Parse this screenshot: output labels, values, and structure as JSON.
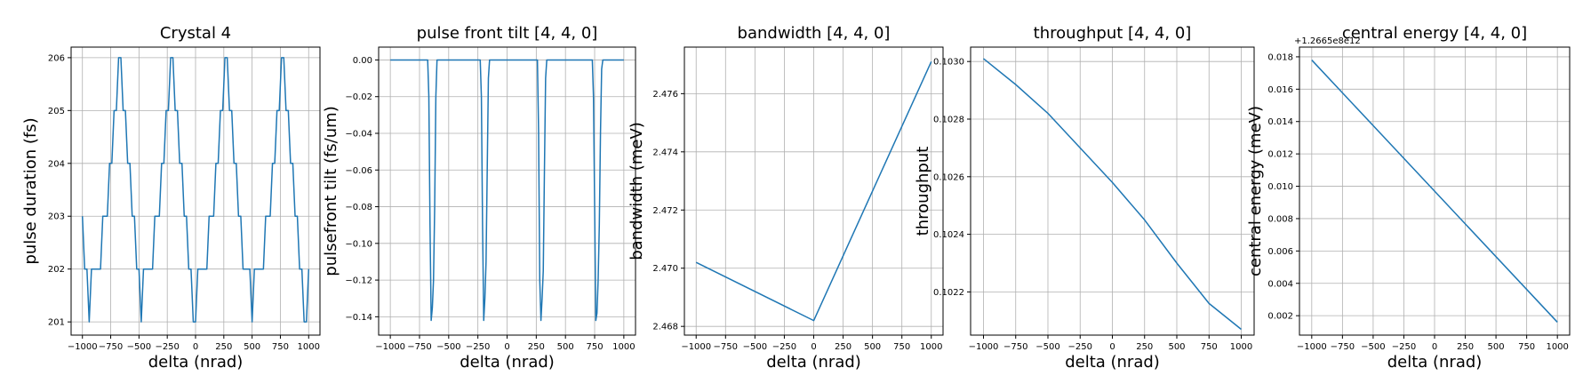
{
  "chart_data": [
    {
      "type": "line",
      "title": "Crystal 4",
      "xlabel": "delta (nrad)",
      "ylabel": "pulse duration (fs)",
      "xlim": [
        -1100,
        1100
      ],
      "ylim": [
        200.75,
        206.2
      ],
      "x_ticks": [
        -1000,
        -750,
        -500,
        -250,
        0,
        250,
        500,
        750,
        1000
      ],
      "x_tick_labels": [
        "−1000",
        "−750",
        "−500",
        "−250",
        "0",
        "250",
        "500",
        "750",
        "1000"
      ],
      "y_ticks": [
        201,
        202,
        203,
        204,
        205,
        206
      ],
      "y_tick_labels": [
        "201",
        "202",
        "203",
        "204",
        "205",
        "206"
      ],
      "offset_label": "",
      "grid": true,
      "color": "#1f77b4",
      "series": [
        {
          "x": [
            -1000,
            -980,
            -960,
            -940,
            -920,
            -900,
            -880,
            -860,
            -840,
            -820,
            -800,
            -780,
            -760,
            -740,
            -720,
            -700,
            -680,
            -660,
            -640,
            -620,
            -600,
            -580,
            -560,
            -540,
            -520,
            -500,
            -480,
            -460,
            -440,
            -420,
            -400,
            -380,
            -360,
            -340,
            -320,
            -300,
            -280,
            -260,
            -240,
            -220,
            -200,
            -180,
            -160,
            -140,
            -120,
            -100,
            -80,
            -60,
            -40,
            -20,
            0,
            20,
            40,
            60,
            80,
            100,
            120,
            140,
            160,
            180,
            200,
            220,
            240,
            260,
            280,
            300,
            320,
            340,
            360,
            380,
            400,
            420,
            440,
            460,
            480,
            500,
            520,
            540,
            560,
            580,
            600,
            620,
            640,
            660,
            680,
            700,
            720,
            740,
            760,
            780,
            800,
            820,
            840,
            860,
            880,
            900,
            920,
            940,
            960,
            980,
            1000
          ],
          "y": [
            203,
            202,
            202,
            201,
            202,
            202,
            202,
            202,
            202,
            203,
            203,
            203,
            204,
            204,
            205,
            205,
            206,
            206,
            205,
            205,
            204,
            204,
            203,
            203,
            202,
            202,
            201,
            202,
            202,
            202,
            202,
            202,
            203,
            203,
            203,
            204,
            204,
            205,
            205,
            206,
            206,
            205,
            205,
            204,
            204,
            203,
            203,
            202,
            202,
            201,
            201,
            202,
            202,
            202,
            202,
            202,
            203,
            203,
            203,
            204,
            204,
            205,
            205,
            206,
            206,
            205,
            205,
            204,
            204,
            203,
            203,
            202,
            202,
            202,
            202,
            201,
            202,
            202,
            202,
            202,
            202,
            203,
            203,
            203,
            204,
            204,
            205,
            205,
            206,
            206,
            205,
            205,
            204,
            204,
            203,
            203,
            202,
            202,
            201,
            201,
            202
          ]
        }
      ]
    },
    {
      "type": "line",
      "title": "pulse front tilt [4, 4, 0]",
      "xlabel": "delta (nrad)",
      "ylabel": "pulsefront tilt (fs/um)",
      "xlim": [
        -1100,
        1100
      ],
      "ylim": [
        -0.15,
        0.007
      ],
      "x_ticks": [
        -1000,
        -750,
        -500,
        -250,
        0,
        250,
        500,
        750,
        1000
      ],
      "x_tick_labels": [
        "−1000",
        "−750",
        "−500",
        "−250",
        "0",
        "250",
        "500",
        "750",
        "1000"
      ],
      "y_ticks": [
        0.0,
        -0.02,
        -0.04,
        -0.06,
        -0.08,
        -0.1,
        -0.12,
        -0.14
      ],
      "y_tick_labels": [
        "0.00",
        "−0.02",
        "−0.04",
        "−0.06",
        "−0.08",
        "−0.10",
        "−0.12",
        "−0.14"
      ],
      "offset_label": "",
      "grid": true,
      "color": "#1f77b4",
      "series": [
        {
          "x": [
            -1000,
            -680,
            -670,
            -660,
            -650,
            -640,
            -630,
            -620,
            -610,
            -600,
            -230,
            -220,
            -210,
            -200,
            -190,
            -180,
            -170,
            -160,
            -150,
            260,
            270,
            280,
            290,
            300,
            310,
            320,
            330,
            340,
            730,
            740,
            750,
            760,
            770,
            780,
            790,
            800,
            810,
            820,
            1000
          ],
          "y": [
            0,
            0,
            -0.02,
            -0.09,
            -0.142,
            -0.135,
            -0.12,
            -0.08,
            -0.02,
            0,
            0,
            -0.02,
            -0.09,
            -0.142,
            -0.13,
            -0.11,
            -0.06,
            -0.01,
            0,
            0,
            -0.04,
            -0.12,
            -0.142,
            -0.13,
            -0.115,
            -0.06,
            -0.01,
            0,
            0,
            -0.02,
            -0.08,
            -0.142,
            -0.138,
            -0.12,
            -0.09,
            -0.04,
            -0.005,
            0,
            0
          ]
        }
      ]
    },
    {
      "type": "line",
      "title": "bandwidth [4, 4, 0]",
      "xlabel": "delta (nrad)",
      "ylabel": "bandwidth (meV)",
      "xlim": [
        -1100,
        1100
      ],
      "ylim": [
        2.4677,
        2.4776
      ],
      "x_ticks": [
        -1000,
        -750,
        -500,
        -250,
        0,
        250,
        500,
        750,
        1000
      ],
      "x_tick_labels": [
        "−1000",
        "−750",
        "−500",
        "−250",
        "0",
        "250",
        "500",
        "750",
        "1000"
      ],
      "y_ticks": [
        2.468,
        2.47,
        2.472,
        2.474,
        2.476
      ],
      "y_tick_labels": [
        "2.468",
        "2.470",
        "2.472",
        "2.474",
        "2.476"
      ],
      "offset_label": "",
      "grid": true,
      "color": "#1f77b4",
      "series": [
        {
          "x": [
            -1000,
            0,
            1000
          ],
          "y": [
            2.4702,
            2.4682,
            2.4771
          ]
        }
      ]
    },
    {
      "type": "line",
      "title": "throughput [4, 4, 0]",
      "xlabel": "delta (nrad)",
      "ylabel": "throughput",
      "xlim": [
        -1100,
        1100
      ],
      "ylim": [
        0.10205,
        0.10305
      ],
      "x_ticks": [
        -1000,
        -750,
        -500,
        -250,
        0,
        250,
        500,
        750,
        1000
      ],
      "x_tick_labels": [
        "−1000",
        "−750",
        "−500",
        "−250",
        "0",
        "250",
        "500",
        "750",
        "1000"
      ],
      "y_ticks": [
        0.1022,
        0.1024,
        0.1026,
        0.1028,
        0.103
      ],
      "y_tick_labels": [
        "0.1022",
        "0.1024",
        "0.1026",
        "0.1028",
        "0.1030"
      ],
      "offset_label": "",
      "grid": true,
      "color": "#1f77b4",
      "series": [
        {
          "x": [
            -1000,
            -750,
            -500,
            -250,
            0,
            250,
            500,
            750,
            1000
          ],
          "y": [
            0.10301,
            0.10292,
            0.10282,
            0.1027,
            0.10258,
            0.10245,
            0.1023,
            0.10216,
            0.10207
          ]
        }
      ]
    },
    {
      "type": "line",
      "title": "central energy [4, 4, 0]",
      "xlabel": "delta (nrad)",
      "ylabel": "central energy (meV)",
      "xlim": [
        -1100,
        1100
      ],
      "ylim": [
        0.0008,
        0.0186
      ],
      "x_ticks": [
        -1000,
        -750,
        -500,
        -250,
        0,
        250,
        500,
        750,
        1000
      ],
      "x_tick_labels": [
        "−1000",
        "−750",
        "−500",
        "−250",
        "0",
        "250",
        "500",
        "750",
        "1000"
      ],
      "y_ticks": [
        0.002,
        0.004,
        0.006,
        0.008,
        0.01,
        0.012,
        0.014,
        0.016,
        0.018
      ],
      "y_tick_labels": [
        "0.002",
        "0.004",
        "0.006",
        "0.008",
        "0.010",
        "0.012",
        "0.014",
        "0.016",
        "0.018"
      ],
      "offset_label": "+1.2665e8e12",
      "grid": true,
      "color": "#1f77b4",
      "series": [
        {
          "x": [
            -1000,
            1000
          ],
          "y": [
            0.0178,
            0.0016
          ]
        }
      ]
    }
  ]
}
